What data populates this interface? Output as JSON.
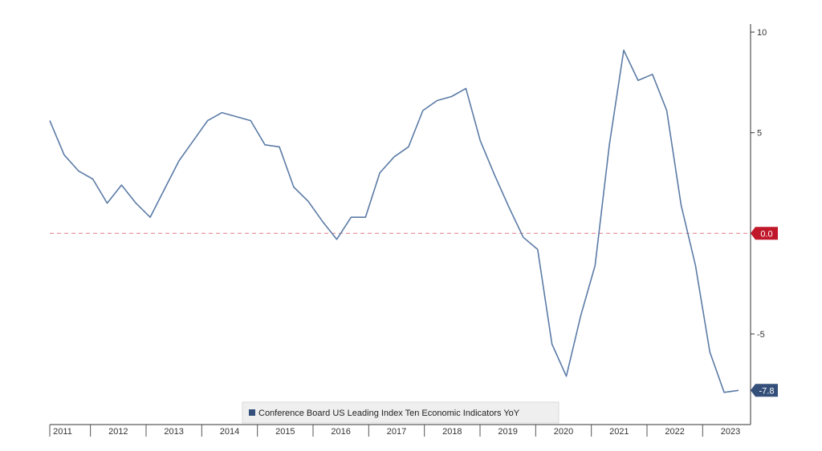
{
  "chart_data": {
    "type": "line",
    "title": "",
    "xlabel": "",
    "ylabel": "",
    "ylim": [
      -9.5,
      10.4
    ],
    "y_ticks": [
      10,
      5,
      -5
    ],
    "x_tick_labels": [
      "2011",
      "2012",
      "2013",
      "2014",
      "2015",
      "2016",
      "2017",
      "2018",
      "2019",
      "2020",
      "2021",
      "2022",
      "2023"
    ],
    "reference_line": {
      "value": 0.0,
      "label": "0.0",
      "color": "#c0182a"
    },
    "last_value_label": "-7.8",
    "series": [
      {
        "name": "Conference Board US Leading Index Ten Economic Indicators YoY",
        "color": "#5b7ba6",
        "tag_color": "#34507a",
        "x": [
          2011.0,
          2011.25,
          2011.5,
          2011.75,
          2012.0,
          2012.25,
          2012.5,
          2012.75,
          2013.0,
          2013.25,
          2013.5,
          2013.75,
          2014.0,
          2014.25,
          2014.5,
          2014.75,
          2015.0,
          2015.25,
          2015.5,
          2015.75,
          2016.0,
          2016.25,
          2016.5,
          2016.75,
          2017.0,
          2017.25,
          2017.5,
          2017.75,
          2018.0,
          2018.25,
          2018.5,
          2018.75,
          2019.0,
          2019.25,
          2019.5,
          2019.75,
          2020.0,
          2020.25,
          2020.5,
          2020.75,
          2021.0,
          2021.25,
          2021.5,
          2021.75,
          2022.0,
          2022.25,
          2022.5,
          2022.75,
          2023.0
        ],
        "values": [
          5.6,
          3.9,
          3.1,
          2.7,
          1.5,
          2.4,
          1.5,
          0.8,
          2.2,
          3.6,
          4.6,
          5.6,
          6.0,
          5.8,
          5.6,
          4.4,
          4.3,
          2.3,
          1.6,
          0.6,
          -0.3,
          0.8,
          0.8,
          3.0,
          3.8,
          4.3,
          6.1,
          6.6,
          6.8,
          7.2,
          4.6,
          2.9,
          1.3,
          -0.2,
          -0.8,
          -5.5,
          -7.1,
          -4.1,
          -1.6,
          4.4,
          9.1,
          7.6,
          7.9,
          6.1,
          1.4,
          -1.6,
          -5.9,
          -7.9,
          -7.8
        ]
      }
    ]
  }
}
